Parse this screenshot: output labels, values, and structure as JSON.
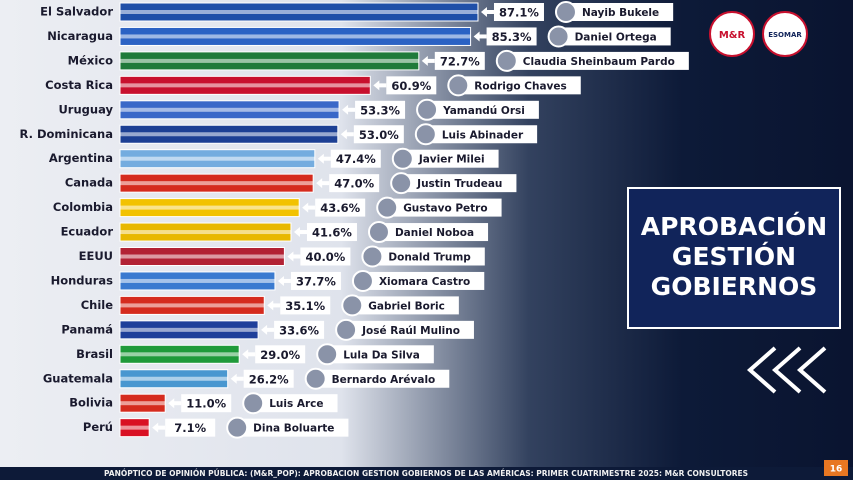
{
  "chart_data": {
    "type": "bar",
    "orientation": "horizontal",
    "title": "APROBACIÓN GESTIÓN GOBIERNOS",
    "categories": [
      "El Salvador",
      "Nicaragua",
      "México",
      "Costa Rica",
      "Uruguay",
      "R. Dominicana",
      "Argentina",
      "Canada",
      "Colombia",
      "Ecuador",
      "EEUU",
      "Honduras",
      "Chile",
      "Panamá",
      "Brasil",
      "Guatemala",
      "Bolivia",
      "Perú"
    ],
    "values": [
      87.1,
      85.3,
      72.7,
      60.9,
      53.3,
      53.0,
      47.4,
      47.0,
      43.6,
      41.6,
      40.0,
      37.7,
      35.1,
      33.6,
      29.0,
      26.2,
      11.0,
      7.1
    ],
    "value_labels": [
      "87.1%",
      "85.3%",
      "72.7%",
      "60.9%",
      "53.3%",
      "53.0%",
      "47.4%",
      "47.0%",
      "43.6%",
      "41.6%",
      "40.0%",
      "37.7%",
      "35.1%",
      "33.6%",
      "29.0%",
      "26.2%",
      "11.0%",
      "7.1%"
    ],
    "leaders": [
      "Nayib Bukele",
      "Daniel Ortega",
      "Claudia Sheinbaum Pardo",
      "Rodrigo Chaves",
      "Yamandú Orsi",
      "Luis Abinader",
      "Javier Milei",
      "Justin Trudeau",
      "Gustavo Petro",
      "Daniel Noboa",
      "Donald Trump",
      "Xiomara Castro",
      "Gabriel Boric",
      "José Raúl Mulino",
      "Lula Da Silva",
      "Bernardo Arévalo",
      "Luis Arce",
      "Dina Boluarte"
    ],
    "colors": [
      "#1f4fa8",
      "#2b62c4",
      "#1f7a3a",
      "#c8102e",
      "#3a68c8",
      "#1c3f94",
      "#74acdf",
      "#d52b1e",
      "#f2c200",
      "#e8b800",
      "#b22234",
      "#3a7ad0",
      "#d52b1e",
      "#1f3f9a",
      "#1f9a3a",
      "#4997d0",
      "#d52b1e",
      "#d91023"
    ]
  },
  "logos": [
    "M&R",
    "ESOMAR"
  ],
  "footer": "PANÓPTICO DE OPINIÓN PÚBLICA: (M&R_POP): APROBACION GESTION GOBIERNOS DE LAS AMÉRICAS: PRIMER CUATRIMESTRE 2025: M&R CONSULTORES",
  "page_number": "16"
}
